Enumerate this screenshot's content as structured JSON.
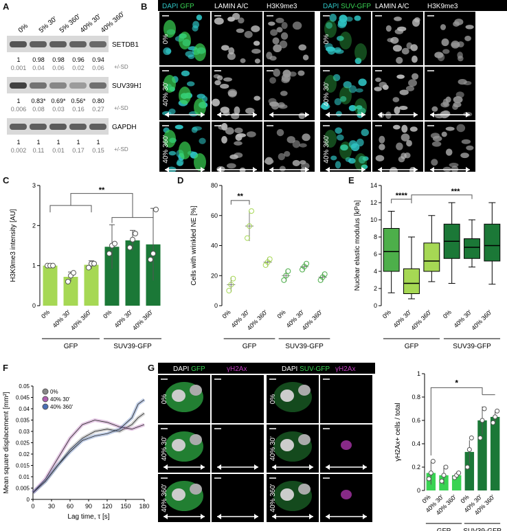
{
  "panels": {
    "a": "A",
    "b": "B",
    "c": "C",
    "d": "D",
    "e": "E",
    "f": "F",
    "g": "G"
  },
  "blot": {
    "conditions": [
      "0%",
      "5% 30'",
      "5% 360'",
      "40% 30'",
      "40% 360'"
    ],
    "rows": [
      {
        "label": "SETDB1",
        "values": [
          "1",
          "0.98",
          "0.98",
          "0.96",
          "0.94"
        ],
        "sd": [
          "0.001",
          "0.04",
          "0.06",
          "0.02",
          "0.06"
        ]
      },
      {
        "label": "SUV39H1",
        "values": [
          "1",
          "0.83*",
          "0.69*",
          "0.56*",
          "0.80"
        ],
        "sd": [
          "0.006",
          "0.08",
          "0.03",
          "0.16",
          "0.27"
        ]
      },
      {
        "label": "GAPDH",
        "values": [
          "1",
          "1",
          "1",
          "1",
          "1"
        ],
        "sd": [
          "0.002",
          "0.11",
          "0.01",
          "0.17",
          "0.15"
        ]
      }
    ],
    "sd_label": "+/-SD",
    "band_intensity": [
      [
        0.85,
        0.8,
        0.8,
        0.78,
        0.75
      ],
      [
        0.95,
        0.7,
        0.6,
        0.5,
        0.72
      ],
      [
        0.8,
        0.8,
        0.82,
        0.8,
        0.8
      ]
    ]
  },
  "micro_b": {
    "left_headers": [
      {
        "a": "DAPI",
        "b": "GFP"
      },
      {
        "a": "LAMIN A/C"
      },
      {
        "a": "H3K9me3"
      }
    ],
    "right_headers": [
      {
        "a": "DAPI",
        "b": "SUV-GFP"
      },
      {
        "a": "LAMIN A/C"
      },
      {
        "a": "H3K9me3"
      }
    ],
    "rows": [
      "0%",
      "40% 30'",
      "40% 360'"
    ]
  },
  "micro_g": {
    "left_headers": [
      {
        "a": "DAPI",
        "b": "GFP"
      },
      {
        "a": "γH2Ax"
      }
    ],
    "right_headers": [
      {
        "a": "DAPI",
        "b": "SUV-GFP"
      },
      {
        "a": "γH2Ax"
      }
    ],
    "rows": [
      "0%",
      "40% 30'",
      "40% 360'"
    ]
  },
  "colors": {
    "light": "#a6d854",
    "mid": "#4daf4a",
    "dark": "#1b7837",
    "cyan": "#2ec4c4",
    "green": "#39d353",
    "magenta": "#c03cc0"
  },
  "chart_data": [
    {
      "id": "C",
      "type": "bar",
      "ylabel": "H3K9me3 intensity [AU]",
      "ylim": [
        0,
        3
      ],
      "yticks": [
        0,
        1,
        2,
        3
      ],
      "categories": [
        "0%",
        "40% 30'",
        "40% 360'",
        "0%",
        "40% 30'",
        "40% 360'"
      ],
      "values": [
        1.0,
        0.72,
        1.02,
        1.47,
        1.63,
        1.53
      ],
      "err": [
        0.01,
        0.12,
        0.1,
        0.55,
        0.25,
        0.9
      ],
      "points": [
        [
          1,
          1,
          1
        ],
        [
          0.6,
          0.75,
          0.82
        ],
        [
          0.95,
          1.05,
          1.05
        ],
        [
          1.3,
          1.5,
          1.55
        ],
        [
          1.45,
          1.65,
          1.8
        ],
        [
          1.15,
          1.3,
          2.4
        ]
      ],
      "groups": [
        {
          "label": "GFP",
          "n": 3
        },
        {
          "label": "SUV39-GFP",
          "n": 3
        }
      ],
      "significance": "**"
    },
    {
      "id": "D",
      "type": "scatter",
      "ylabel": "Cells with wrinkled NE [%]",
      "ylim": [
        0,
        80
      ],
      "yticks": [
        0,
        20,
        40,
        60,
        80
      ],
      "categories": [
        "0%",
        "40% 30'",
        "40% 360'",
        "0%",
        "40% 30'",
        "40% 360'"
      ],
      "values": [
        14,
        53,
        29,
        20,
        26,
        19
      ],
      "err": [
        5,
        10,
        3,
        4,
        3,
        3
      ],
      "points": [
        [
          10,
          14,
          18
        ],
        [
          45,
          53,
          63
        ],
        [
          27,
          29,
          31
        ],
        [
          17,
          20,
          23
        ],
        [
          24,
          26,
          28
        ],
        [
          17,
          19,
          21
        ]
      ],
      "groups": [
        {
          "label": "GFP",
          "n": 3
        },
        {
          "label": "SUV39-GFP",
          "n": 3
        }
      ],
      "significance": "**"
    },
    {
      "id": "E",
      "type": "box",
      "ylabel": "Nuclear elastic modulus [kPa]",
      "ylim": [
        0,
        14
      ],
      "yticks": [
        0,
        2,
        4,
        6,
        8,
        10,
        12,
        14
      ],
      "categories": [
        "0%",
        "40% 30'",
        "40% 360'",
        "0%",
        "40% 30'",
        "40% 360'"
      ],
      "boxes": [
        {
          "min": 1.5,
          "q1": 4.0,
          "median": 6.3,
          "q3": 9.0,
          "max": 11.0
        },
        {
          "min": 0.8,
          "q1": 1.4,
          "median": 2.6,
          "q3": 4.3,
          "max": 8.0
        },
        {
          "min": 2.8,
          "q1": 4.0,
          "median": 5.2,
          "q3": 7.3,
          "max": 10.5
        },
        {
          "min": 2.6,
          "q1": 5.5,
          "median": 7.5,
          "q3": 9.5,
          "max": 12.0
        },
        {
          "min": 4.5,
          "q1": 5.5,
          "median": 6.8,
          "q3": 7.8,
          "max": 10.0
        },
        {
          "min": 2.5,
          "q1": 5.2,
          "median": 7.0,
          "q3": 9.5,
          "max": 12.0
        }
      ],
      "groups": [
        {
          "label": "GFP",
          "n": 3
        },
        {
          "label": "SUV39-GFP",
          "n": 3
        }
      ],
      "significance": [
        "****",
        "***"
      ]
    },
    {
      "id": "F",
      "type": "line",
      "xlabel": "Lag time, τ [s]",
      "ylabel": "Mean square displacement [mm²]",
      "xlim": [
        0,
        180
      ],
      "ylim": [
        0,
        0.05
      ],
      "xticks": [
        0,
        30,
        60,
        90,
        120,
        150,
        180
      ],
      "yticks": [
        0,
        0.005,
        0.01,
        0.015,
        0.02,
        0.025,
        0.03,
        0.035,
        0.04,
        0.045,
        0.05
      ],
      "series": [
        {
          "name": "0%",
          "x": [
            0,
            20,
            40,
            60,
            80,
            100,
            120,
            140,
            160,
            170,
            180
          ],
          "y": [
            0.003,
            0.008,
            0.015,
            0.022,
            0.027,
            0.03,
            0.031,
            0.03,
            0.033,
            0.036,
            0.038
          ]
        },
        {
          "name": "40% 30'",
          "x": [
            0,
            20,
            40,
            60,
            80,
            100,
            120,
            140,
            160,
            170,
            180
          ],
          "y": [
            0.003,
            0.009,
            0.018,
            0.027,
            0.033,
            0.035,
            0.034,
            0.032,
            0.031,
            0.032,
            0.033
          ]
        },
        {
          "name": "40% 360'",
          "x": [
            0,
            20,
            40,
            60,
            80,
            100,
            120,
            140,
            160,
            170,
            180
          ],
          "y": [
            0.003,
            0.008,
            0.015,
            0.021,
            0.026,
            0.028,
            0.029,
            0.031,
            0.036,
            0.042,
            0.044
          ]
        }
      ]
    },
    {
      "id": "G",
      "type": "bar",
      "ylabel": "γH2Ax+ cells / total",
      "ylim": [
        0,
        1
      ],
      "yticks": [
        0,
        0.2,
        0.4,
        0.6,
        0.8,
        1
      ],
      "categories": [
        "0%",
        "40% 30'",
        "40% 360'",
        "0%",
        "40% 30'",
        "40% 360'"
      ],
      "values": [
        0.15,
        0.13,
        0.13,
        0.33,
        0.6,
        0.63
      ],
      "err": [
        0.1,
        0.08,
        0.03,
        0.1,
        0.12,
        0.05
      ],
      "points": [
        [
          0.1,
          0.15,
          0.25
        ],
        [
          0.08,
          0.13,
          0.2
        ],
        [
          0.11,
          0.13,
          0.15
        ],
        [
          0.2,
          0.35,
          0.45
        ],
        [
          0.45,
          0.6,
          0.7
        ],
        [
          0.58,
          0.63,
          0.68
        ]
      ],
      "groups": [
        {
          "label": "GFP",
          "n": 3
        },
        {
          "label": "SUV39-GFP",
          "n": 3
        }
      ],
      "significance": "*"
    }
  ]
}
